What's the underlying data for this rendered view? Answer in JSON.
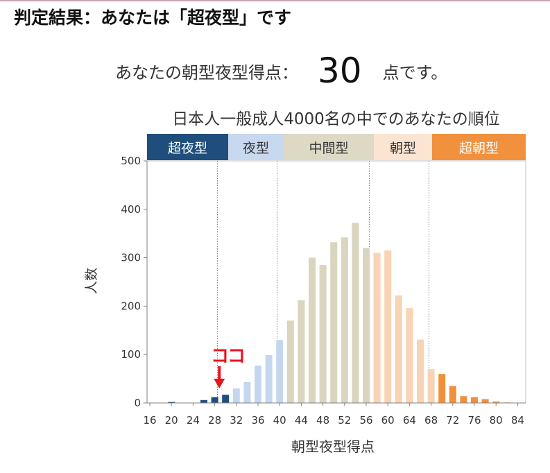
{
  "header": {
    "title": "判定結果：あなたは「超夜型」です"
  },
  "result": {
    "prefix": "あなたの朝型夜型得点：",
    "score": "30",
    "suffix": "点です。"
  },
  "chart_data": {
    "type": "bar",
    "title": "日本人一般成人4000名の中でのあなたの順位",
    "xlabel": "朝型夜型得点",
    "ylabel": "人数",
    "ylim": [
      0,
      500
    ],
    "yticks": [
      0,
      100,
      200,
      300,
      400,
      500
    ],
    "xticks": [
      16,
      20,
      24,
      28,
      32,
      36,
      40,
      44,
      48,
      52,
      56,
      60,
      64,
      68,
      72,
      76,
      80,
      84
    ],
    "xlim": [
      16,
      86
    ],
    "grid": false,
    "categories": [
      16,
      18,
      20,
      22,
      24,
      26,
      28,
      30,
      32,
      34,
      36,
      38,
      40,
      42,
      44,
      46,
      48,
      50,
      52,
      54,
      56,
      58,
      60,
      62,
      64,
      66,
      68,
      70,
      72,
      74,
      76,
      78,
      80,
      82,
      84
    ],
    "values": [
      0,
      0,
      2,
      0,
      0,
      6,
      12,
      17,
      30,
      43,
      77,
      99,
      130,
      170,
      212,
      300,
      285,
      332,
      342,
      372,
      320,
      310,
      315,
      222,
      196,
      131,
      70,
      60,
      35,
      14,
      12,
      8,
      3,
      1,
      0
    ],
    "bands": [
      {
        "label": "超夜型",
        "from": 16,
        "to": 30,
        "color": "#1f4e7c"
      },
      {
        "label": "夜型",
        "from": 30,
        "to": 41,
        "color": "#c8d8ee"
      },
      {
        "label": "中間型",
        "from": 41,
        "to": 58,
        "color": "#ddd9c4"
      },
      {
        "label": "朝型",
        "from": 58,
        "to": 69,
        "color": "#fce4d2"
      },
      {
        "label": "超朝型",
        "from": 69,
        "to": 86,
        "color": "#f2913d"
      }
    ],
    "bar_colors": [
      "#1f4e7c",
      "#c5d7ef",
      "#d9d5bf",
      "#f8d3b4",
      "#f0913a"
    ],
    "annotation": {
      "text": "ココ",
      "x": 30,
      "color": "#e8141b"
    }
  }
}
